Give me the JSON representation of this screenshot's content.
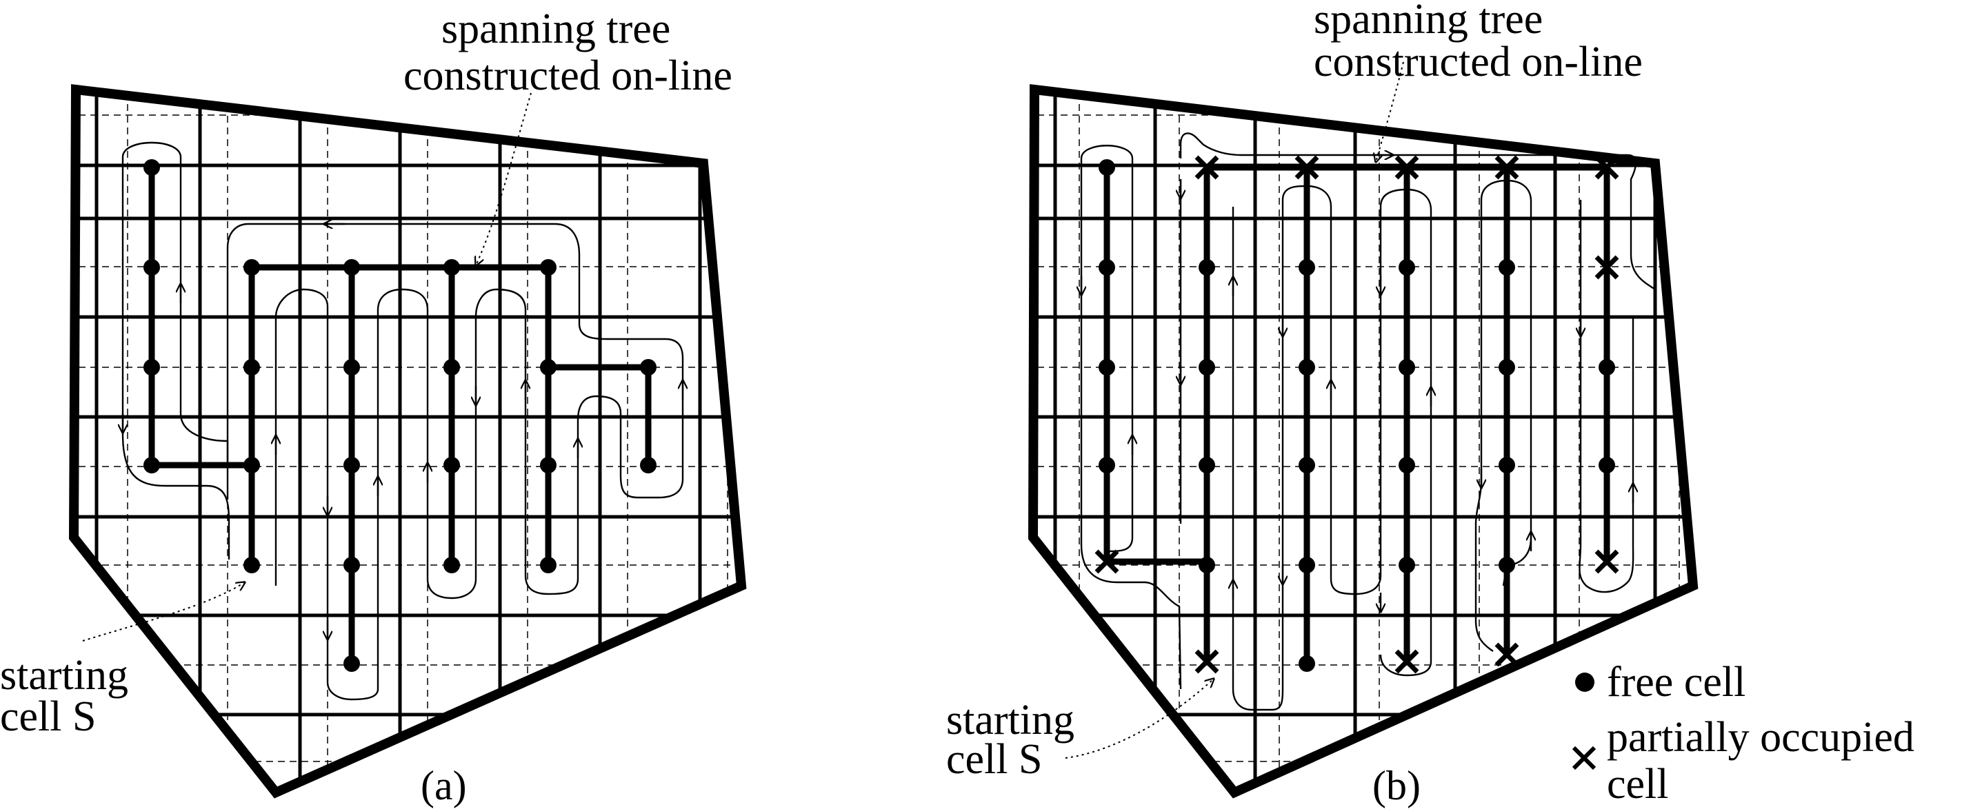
{
  "panel_a": {
    "caption": "(a)",
    "tree_label_line1": "spanning tree",
    "tree_label_line2": "constructed on-line",
    "start_label_line1": "starting",
    "start_label_line2": "cell S"
  },
  "panel_b": {
    "caption": "(b)",
    "tree_label_line1": "spanning tree",
    "tree_label_line2": "constructed on-line",
    "start_label_line1": "starting",
    "start_label_line2": "cell S"
  },
  "legend": {
    "free_cell": "free cell",
    "partial_line1": "partially occupied",
    "partial_line2": "cell"
  },
  "colors": {
    "ink": "#000000",
    "background": "#ffffff"
  }
}
